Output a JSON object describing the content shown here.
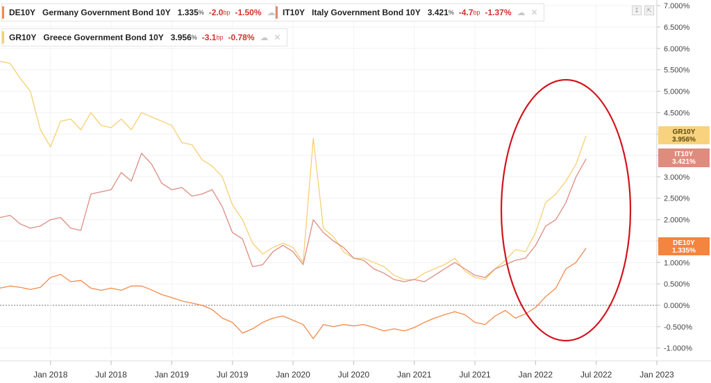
{
  "legend": [
    {
      "symbol": "DE10Y",
      "name": "Germany Government Bond 10Y",
      "value": "1.335",
      "unit": "%",
      "change_bp": "-2.0",
      "bp_unit": "bp",
      "change_pct": "-1.50%",
      "color": "#f28a4b"
    },
    {
      "symbol": "IT10Y",
      "name": "Italy Government Bond 10Y",
      "value": "3.421",
      "unit": "%",
      "change_bp": "-4.7",
      "bp_unit": "bp",
      "change_pct": "-1.37%",
      "color": "#e08a76"
    },
    {
      "symbol": "GR10Y",
      "name": "Greece Government Bond 10Y",
      "value": "3.956",
      "unit": "%",
      "change_bp": "-3.1",
      "bp_unit": "bp",
      "change_pct": "-0.78%",
      "color": "#f6cf72"
    }
  ],
  "icons": {
    "share": "share-icon",
    "close": "close-icon",
    "download": "download-icon",
    "expand": "expand-icon"
  },
  "price_tags": [
    {
      "symbol": "GR10Y",
      "value": "3.956%",
      "color": "#f8d27c",
      "text_color": "#5a4a14"
    },
    {
      "symbol": "IT10Y",
      "value": "3.421%",
      "color": "#df8c7e",
      "text_color": "#ffffff"
    },
    {
      "symbol": "DE10Y",
      "value": "1.335%",
      "color": "#f4843e",
      "text_color": "#ffffff"
    }
  ],
  "annotation": {
    "shape": "ellipse",
    "color": "#d0131c",
    "period": "Jan 2022 – Jun 2022"
  },
  "chart_data": {
    "type": "line",
    "y_unit": "%",
    "ylim": [
      -1.2,
      7.05
    ],
    "xlim": [
      "2017-08",
      "2023-01"
    ],
    "y_ticks": [
      "7.000%",
      "6.500%",
      "6.000%",
      "5.500%",
      "5.000%",
      "4.500%",
      "4.000%",
      "3.500%",
      "3.000%",
      "2.500%",
      "2.000%",
      "1.500%",
      "1.000%",
      "0.500%",
      "0.000%",
      "-0.500%",
      "-1.000%"
    ],
    "y_tick_values": [
      7.0,
      6.5,
      6.0,
      5.5,
      5.0,
      4.5,
      4.0,
      3.5,
      3.0,
      2.5,
      2.0,
      1.5,
      1.0,
      0.5,
      0.0,
      -0.5,
      -1.0
    ],
    "x_ticks": [
      "Jan 2018",
      "Jul 2018",
      "Jan 2019",
      "Jul 2019",
      "Jan 2020",
      "Jul 2020",
      "Jan 2021",
      "Jul 2021",
      "Jan 2022",
      "Jul 2022",
      "Jan 2023"
    ],
    "x_tick_dates": [
      "2018-01",
      "2018-07",
      "2019-01",
      "2019-07",
      "2020-01",
      "2020-07",
      "2021-01",
      "2021-07",
      "2022-01",
      "2022-07",
      "2023-01"
    ],
    "zero_line": true,
    "grid": true,
    "series": [
      {
        "name": "GR10Y",
        "color": "#f6cf72",
        "points": [
          [
            "2017-08",
            5.7
          ],
          [
            "2017-09",
            5.65
          ],
          [
            "2017-10",
            5.3
          ],
          [
            "2017-11",
            5.0
          ],
          [
            "2017-12",
            4.1
          ],
          [
            "2018-01",
            3.7
          ],
          [
            "2018-02",
            4.3
          ],
          [
            "2018-03",
            4.35
          ],
          [
            "2018-04",
            4.1
          ],
          [
            "2018-05",
            4.5
          ],
          [
            "2018-06",
            4.2
          ],
          [
            "2018-07",
            4.15
          ],
          [
            "2018-08",
            4.35
          ],
          [
            "2018-09",
            4.1
          ],
          [
            "2018-10",
            4.5
          ],
          [
            "2018-11",
            4.4
          ],
          [
            "2018-12",
            4.3
          ],
          [
            "2019-01",
            4.2
          ],
          [
            "2019-02",
            3.8
          ],
          [
            "2019-03",
            3.75
          ],
          [
            "2019-04",
            3.4
          ],
          [
            "2019-05",
            3.25
          ],
          [
            "2019-06",
            3.0
          ],
          [
            "2019-07",
            2.35
          ],
          [
            "2019-08",
            2.0
          ],
          [
            "2019-09",
            1.45
          ],
          [
            "2019-10",
            1.2
          ],
          [
            "2019-11",
            1.35
          ],
          [
            "2019-12",
            1.45
          ],
          [
            "2020-01",
            1.35
          ],
          [
            "2020-02",
            1.0
          ],
          [
            "2020-03",
            3.9
          ],
          [
            "2020-04",
            1.8
          ],
          [
            "2020-05",
            1.6
          ],
          [
            "2020-06",
            1.25
          ],
          [
            "2020-07",
            1.1
          ],
          [
            "2020-08",
            1.1
          ],
          [
            "2020-09",
            1.0
          ],
          [
            "2020-10",
            0.9
          ],
          [
            "2020-11",
            0.7
          ],
          [
            "2020-12",
            0.6
          ],
          [
            "2021-01",
            0.6
          ],
          [
            "2021-02",
            0.75
          ],
          [
            "2021-03",
            0.85
          ],
          [
            "2021-04",
            0.95
          ],
          [
            "2021-05",
            1.1
          ],
          [
            "2021-06",
            0.8
          ],
          [
            "2021-07",
            0.65
          ],
          [
            "2021-08",
            0.6
          ],
          [
            "2021-09",
            0.85
          ],
          [
            "2021-10",
            1.05
          ],
          [
            "2021-11",
            1.3
          ],
          [
            "2021-12",
            1.25
          ],
          [
            "2022-01",
            1.7
          ],
          [
            "2022-02",
            2.4
          ],
          [
            "2022-03",
            2.6
          ],
          [
            "2022-04",
            2.9
          ],
          [
            "2022-05",
            3.3
          ],
          [
            "2022-06",
            3.956
          ]
        ]
      },
      {
        "name": "IT10Y",
        "color": "#dd8c80",
        "points": [
          [
            "2017-08",
            2.05
          ],
          [
            "2017-09",
            2.1
          ],
          [
            "2017-10",
            1.9
          ],
          [
            "2017-11",
            1.8
          ],
          [
            "2017-12",
            1.85
          ],
          [
            "2018-01",
            2.0
          ],
          [
            "2018-02",
            2.05
          ],
          [
            "2018-03",
            1.8
          ],
          [
            "2018-04",
            1.75
          ],
          [
            "2018-05",
            2.6
          ],
          [
            "2018-06",
            2.65
          ],
          [
            "2018-07",
            2.7
          ],
          [
            "2018-08",
            3.1
          ],
          [
            "2018-09",
            2.9
          ],
          [
            "2018-10",
            3.55
          ],
          [
            "2018-11",
            3.3
          ],
          [
            "2018-12",
            2.85
          ],
          [
            "2019-01",
            2.7
          ],
          [
            "2019-02",
            2.75
          ],
          [
            "2019-03",
            2.55
          ],
          [
            "2019-04",
            2.6
          ],
          [
            "2019-05",
            2.7
          ],
          [
            "2019-06",
            2.3
          ],
          [
            "2019-07",
            1.7
          ],
          [
            "2019-08",
            1.55
          ],
          [
            "2019-09",
            0.9
          ],
          [
            "2019-10",
            0.95
          ],
          [
            "2019-11",
            1.25
          ],
          [
            "2019-12",
            1.4
          ],
          [
            "2020-01",
            1.25
          ],
          [
            "2020-02",
            0.95
          ],
          [
            "2020-03",
            2.0
          ],
          [
            "2020-04",
            1.7
          ],
          [
            "2020-05",
            1.5
          ],
          [
            "2020-06",
            1.35
          ],
          [
            "2020-07",
            1.1
          ],
          [
            "2020-08",
            1.05
          ],
          [
            "2020-09",
            0.85
          ],
          [
            "2020-10",
            0.75
          ],
          [
            "2020-11",
            0.6
          ],
          [
            "2020-12",
            0.55
          ],
          [
            "2021-01",
            0.6
          ],
          [
            "2021-02",
            0.55
          ],
          [
            "2021-03",
            0.7
          ],
          [
            "2021-04",
            0.85
          ],
          [
            "2021-05",
            1.0
          ],
          [
            "2021-06",
            0.85
          ],
          [
            "2021-07",
            0.7
          ],
          [
            "2021-08",
            0.65
          ],
          [
            "2021-09",
            0.85
          ],
          [
            "2021-10",
            0.95
          ],
          [
            "2021-11",
            1.05
          ],
          [
            "2021-12",
            1.1
          ],
          [
            "2022-01",
            1.4
          ],
          [
            "2022-02",
            1.85
          ],
          [
            "2022-03",
            2.0
          ],
          [
            "2022-04",
            2.4
          ],
          [
            "2022-05",
            3.0
          ],
          [
            "2022-06",
            3.421
          ]
        ]
      },
      {
        "name": "DE10Y",
        "color": "#f28a4b",
        "points": [
          [
            "2017-08",
            0.4
          ],
          [
            "2017-09",
            0.45
          ],
          [
            "2017-10",
            0.42
          ],
          [
            "2017-11",
            0.37
          ],
          [
            "2017-12",
            0.42
          ],
          [
            "2018-01",
            0.65
          ],
          [
            "2018-02",
            0.72
          ],
          [
            "2018-03",
            0.55
          ],
          [
            "2018-04",
            0.58
          ],
          [
            "2018-05",
            0.4
          ],
          [
            "2018-06",
            0.35
          ],
          [
            "2018-07",
            0.4
          ],
          [
            "2018-08",
            0.35
          ],
          [
            "2018-09",
            0.45
          ],
          [
            "2018-10",
            0.45
          ],
          [
            "2018-11",
            0.36
          ],
          [
            "2018-12",
            0.25
          ],
          [
            "2019-01",
            0.18
          ],
          [
            "2019-02",
            0.1
          ],
          [
            "2019-03",
            0.05
          ],
          [
            "2019-04",
            0.0
          ],
          [
            "2019-05",
            -0.1
          ],
          [
            "2019-06",
            -0.3
          ],
          [
            "2019-07",
            -0.4
          ],
          [
            "2019-08",
            -0.65
          ],
          [
            "2019-09",
            -0.55
          ],
          [
            "2019-10",
            -0.4
          ],
          [
            "2019-11",
            -0.3
          ],
          [
            "2019-12",
            -0.25
          ],
          [
            "2020-01",
            -0.35
          ],
          [
            "2020-02",
            -0.45
          ],
          [
            "2020-03",
            -0.78
          ],
          [
            "2020-04",
            -0.45
          ],
          [
            "2020-05",
            -0.5
          ],
          [
            "2020-06",
            -0.45
          ],
          [
            "2020-07",
            -0.48
          ],
          [
            "2020-08",
            -0.45
          ],
          [
            "2020-09",
            -0.52
          ],
          [
            "2020-10",
            -0.6
          ],
          [
            "2020-11",
            -0.55
          ],
          [
            "2020-12",
            -0.6
          ],
          [
            "2021-01",
            -0.52
          ],
          [
            "2021-02",
            -0.4
          ],
          [
            "2021-03",
            -0.3
          ],
          [
            "2021-04",
            -0.22
          ],
          [
            "2021-05",
            -0.15
          ],
          [
            "2021-06",
            -0.22
          ],
          [
            "2021-07",
            -0.4
          ],
          [
            "2021-08",
            -0.45
          ],
          [
            "2021-09",
            -0.25
          ],
          [
            "2021-10",
            -0.12
          ],
          [
            "2021-11",
            -0.3
          ],
          [
            "2021-12",
            -0.2
          ],
          [
            "2022-01",
            -0.05
          ],
          [
            "2022-02",
            0.2
          ],
          [
            "2022-03",
            0.4
          ],
          [
            "2022-04",
            0.85
          ],
          [
            "2022-05",
            1.0
          ],
          [
            "2022-06",
            1.335
          ]
        ]
      }
    ]
  }
}
